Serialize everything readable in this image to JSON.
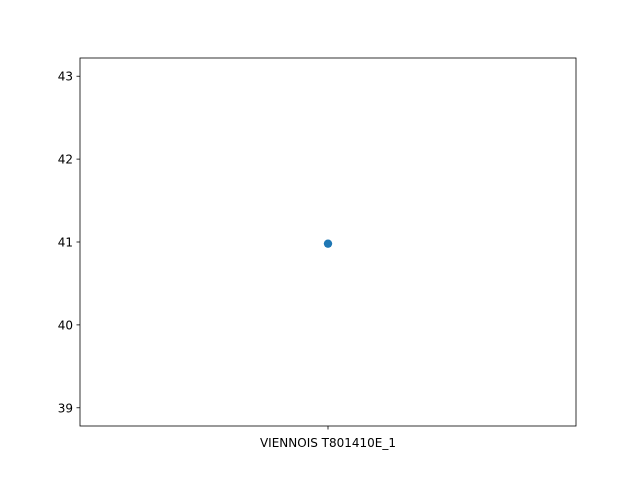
{
  "chart_data": {
    "type": "scatter",
    "title": "",
    "xlabel": "",
    "ylabel": "",
    "categories": [
      "VIENNOIS T801410E_1"
    ],
    "x_tick_labels": [
      "VIENNOIS T801410E_1"
    ],
    "y_tick_labels": [
      "39",
      "40",
      "41",
      "42",
      "43"
    ],
    "y_ticks": [
      39,
      40,
      41,
      42,
      43
    ],
    "ylim": [
      38.78,
      43.22
    ],
    "series": [
      {
        "x": [
          "VIENNOIS T801410E_1"
        ],
        "y": [
          40.98
        ],
        "color": "#1f77b4"
      }
    ],
    "grid": false,
    "legend": "none"
  }
}
